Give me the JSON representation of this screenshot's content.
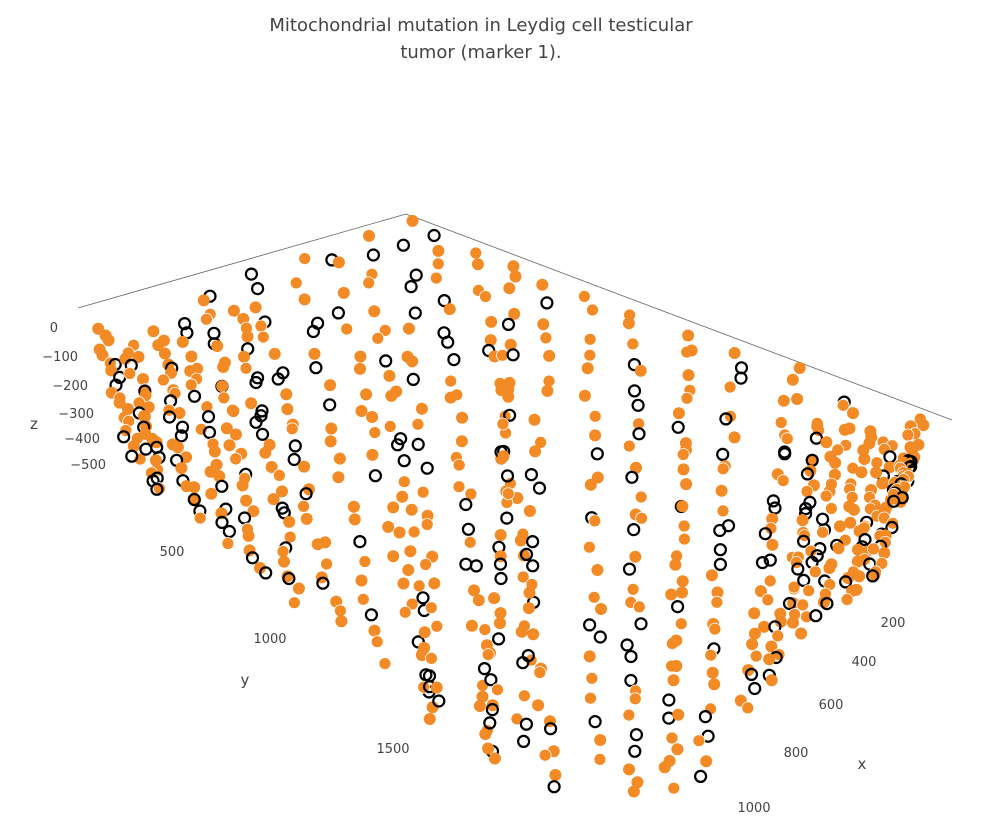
{
  "title": {
    "line1": "Mitochondrial mutation in Leydig cell testicular",
    "line2": "tumor (marker 1)."
  },
  "chart_data": {
    "type": "scatter3d",
    "xlabel": "x",
    "ylabel": "y",
    "zlabel": "z",
    "xlim": [
      0,
      1000
    ],
    "ylim": [
      0,
      1800
    ],
    "zlim": [
      -550,
      0
    ],
    "x_ticks": [
      "200",
      "400",
      "600",
      "800",
      "1000"
    ],
    "y_ticks": [
      "500",
      "1000",
      "1500"
    ],
    "z_ticks": [
      "0",
      "−100",
      "−200",
      "−300",
      "−400",
      "−500"
    ],
    "series": [
      {
        "color": "#f28a25",
        "marker": "filled circle"
      },
      {
        "color": "#000000",
        "marker": "open circle"
      }
    ],
    "grid": true,
    "legend": "none"
  }
}
